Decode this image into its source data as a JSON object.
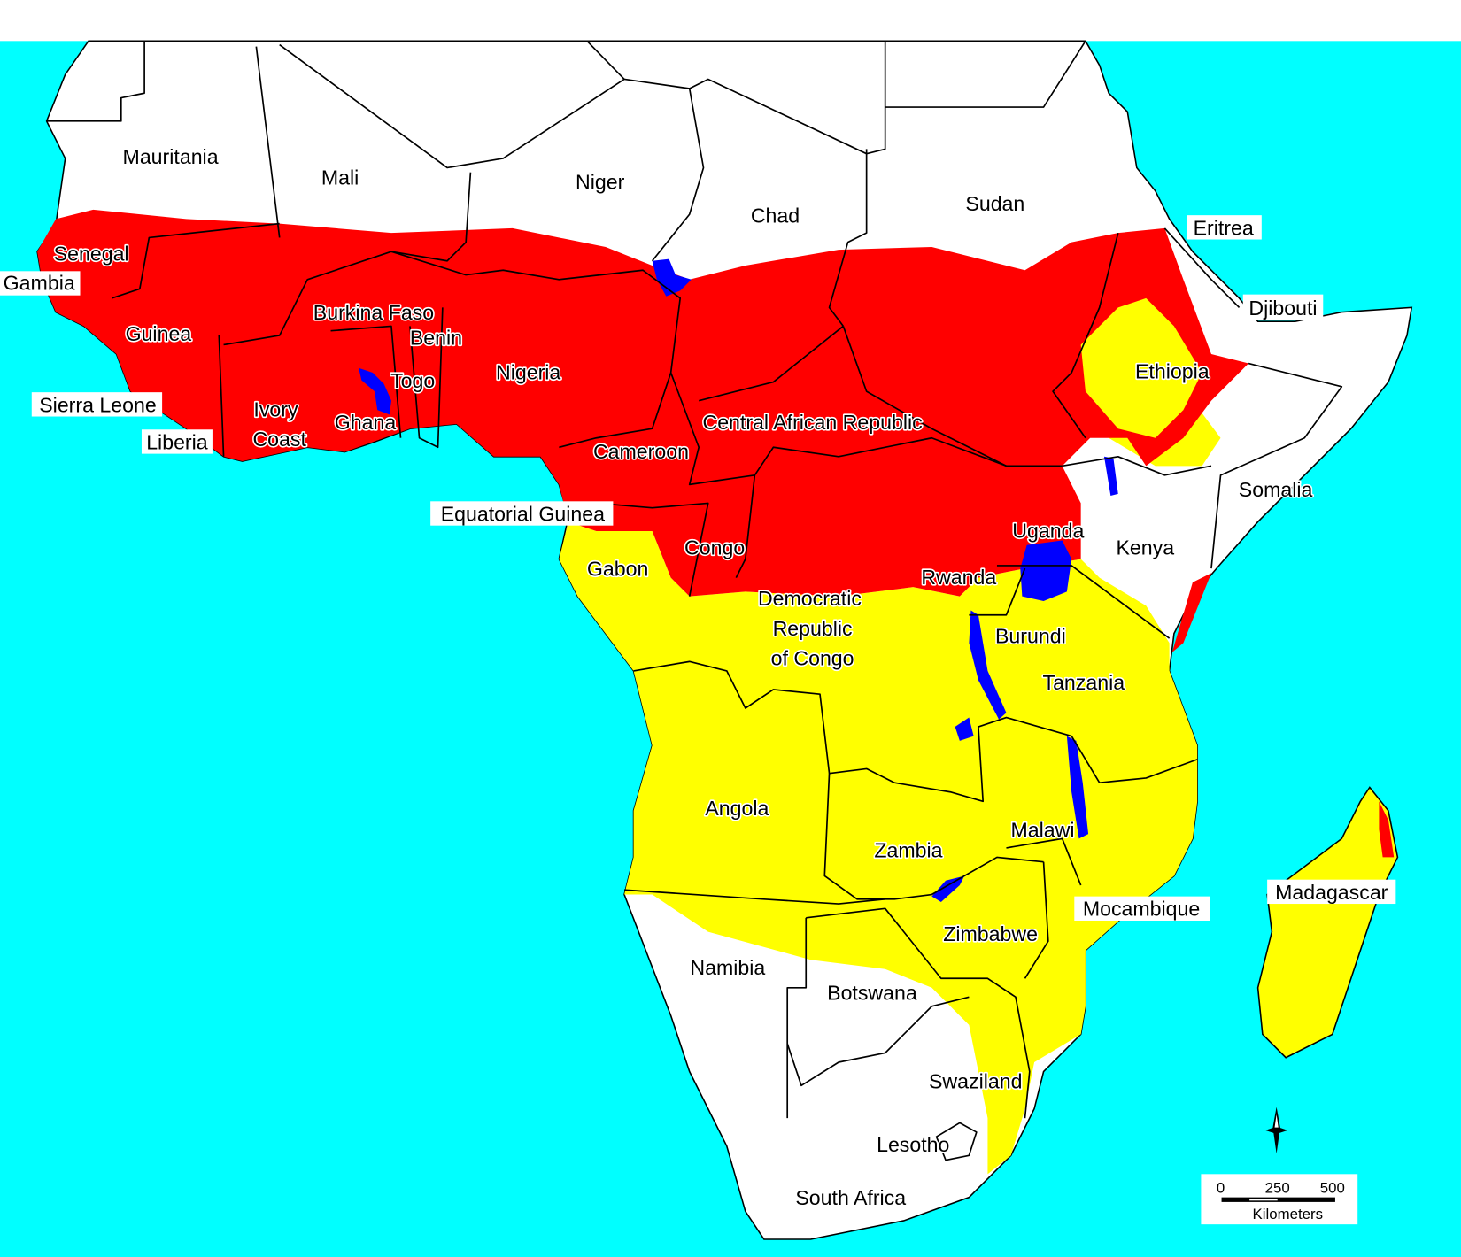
{
  "colors": {
    "ocean": "#00FFFF",
    "land": "#FFFFFF",
    "red_zone": "#FF0000",
    "yellow_zone": "#FFFF00",
    "water": "#0000FF",
    "border": "#000000"
  },
  "labels": [
    "Mauritania",
    "Mali",
    "Niger",
    "Chad",
    "Sudan",
    "Eritrea",
    "Djibouti",
    "Senegal",
    "Gambia",
    "Guinea",
    "Burkina Faso",
    "Benin",
    "Togo",
    "Nigeria",
    "Sierra Leone",
    "Ivory",
    "Coast",
    "Ghana",
    "Liberia",
    "Ethiopia",
    "Central African Republic",
    "Cameroon",
    "Somalia",
    "Equatorial Guinea",
    "Uganda",
    "Kenya",
    "Congo",
    "Gabon",
    "Rwanda",
    "Democratic",
    "Republic",
    "of Congo",
    "Burundi",
    "Tanzania",
    "Angola",
    "Zambia",
    "Malawi",
    "Mocambique",
    "Madagascar",
    "Zimbabwe",
    "Namibia",
    "Botswana",
    "Swaziland",
    "Lesotho",
    "South Africa"
  ],
  "scale_bar": {
    "ticks": [
      "0",
      "250",
      "500"
    ],
    "unit": "Kilometers"
  },
  "compass": {
    "icon": "north-arrow-compass-icon"
  }
}
